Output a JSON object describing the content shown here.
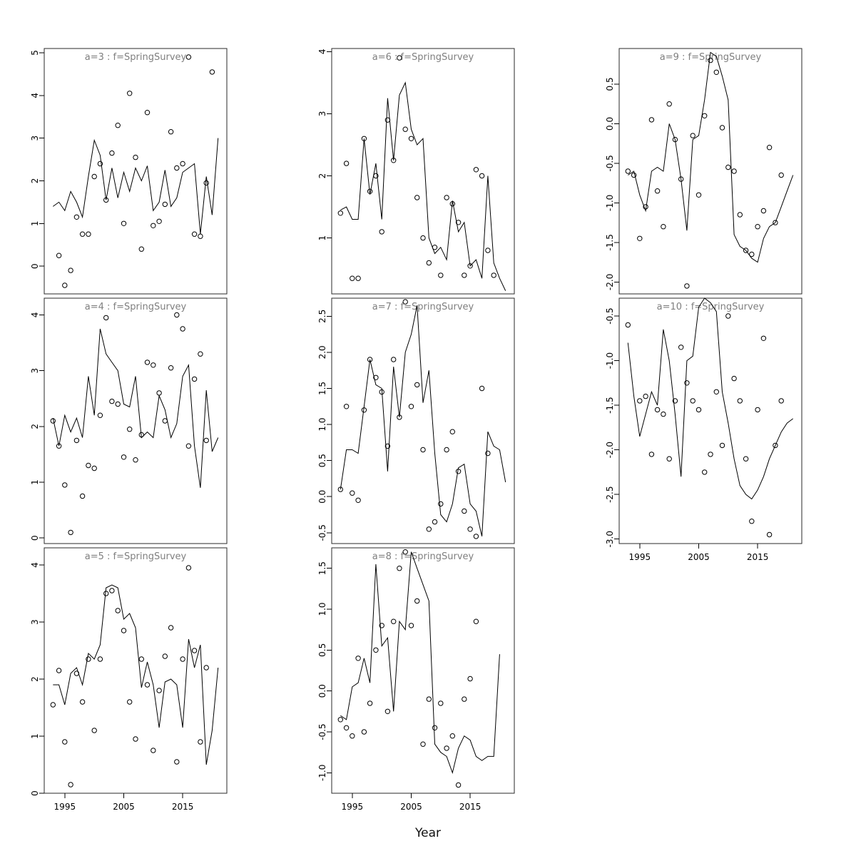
{
  "figure": {
    "xlabel": "Year",
    "title_color": "#7f7f7f",
    "line_color": "#000000",
    "point_color": "#000000"
  },
  "chart_data": {
    "type": "line",
    "title": "",
    "xlabel": "Year",
    "legend": "none",
    "grid": false,
    "x": [
      1993,
      1994,
      1995,
      1996,
      1997,
      1998,
      1999,
      2000,
      2001,
      2002,
      2003,
      2004,
      2005,
      2006,
      2007,
      2008,
      2009,
      2010,
      2011,
      2012,
      2013,
      2014,
      2015,
      2016,
      2017,
      2018,
      2019,
      2020,
      2021
    ],
    "x_range": [
      1992.6,
      2021.4
    ],
    "x_ticks": [
      1995,
      2005,
      2015
    ],
    "x_tick_labels": [
      "1995",
      "2005",
      "2015"
    ],
    "panels": [
      {
        "id": "a3",
        "title": "a=3  :  f=SpringSurvey",
        "row": 0,
        "col": 0,
        "y_range": [
          -0.65,
          5.1
        ],
        "y_ticks": [
          0,
          1,
          2,
          3,
          4,
          5
        ],
        "y_tick_labels": [
          "0",
          "1",
          "2",
          "3",
          "4",
          "5"
        ],
        "show_x_axis": false,
        "series": [
          {
            "name": "fit",
            "type": "line",
            "values": [
              1.4,
              1.5,
              1.3,
              1.75,
              1.5,
              1.15,
              2.1,
              2.95,
              2.6,
              1.55,
              2.3,
              1.6,
              2.2,
              1.75,
              2.3,
              2.0,
              2.35,
              1.3,
              1.5,
              2.25,
              1.4,
              1.6,
              2.2,
              2.3,
              2.4,
              0.75,
              2.1,
              1.2,
              3.0
            ]
          },
          {
            "name": "obs",
            "type": "scatter",
            "values": [
              null,
              0.25,
              -0.45,
              -0.1,
              1.15,
              0.75,
              0.75,
              2.1,
              2.4,
              1.55,
              2.65,
              3.3,
              1.0,
              4.05,
              2.55,
              0.4,
              3.6,
              0.95,
              1.05,
              1.45,
              3.15,
              2.3,
              2.4,
              4.9,
              0.75,
              0.7,
              1.95,
              4.55,
              null
            ]
          }
        ]
      },
      {
        "id": "a6",
        "title": "a=6  :  f=SpringSurvey",
        "row": 0,
        "col": 1,
        "y_range": [
          0.1,
          4.05
        ],
        "y_ticks": [
          1,
          2,
          3,
          4
        ],
        "y_tick_labels": [
          "1",
          "2",
          "3",
          "4"
        ],
        "show_x_axis": false,
        "series": [
          {
            "name": "fit",
            "type": "line",
            "values": [
              1.45,
              1.5,
              1.3,
              1.3,
              2.6,
              1.7,
              2.2,
              1.3,
              3.25,
              2.25,
              3.3,
              3.5,
              2.75,
              2.5,
              2.6,
              1.0,
              0.75,
              0.85,
              0.65,
              1.6,
              1.1,
              1.25,
              0.55,
              0.65,
              0.35,
              2.0,
              0.6,
              0.35,
              0.15
            ]
          },
          {
            "name": "obs",
            "type": "scatter",
            "values": [
              1.4,
              2.2,
              0.35,
              0.35,
              2.6,
              1.75,
              2.0,
              1.1,
              2.9,
              2.25,
              3.9,
              2.75,
              2.6,
              1.65,
              1.0,
              0.6,
              0.85,
              0.4,
              1.65,
              1.55,
              1.25,
              0.4,
              0.55,
              2.1,
              2.0,
              0.8,
              0.4,
              null,
              null
            ]
          }
        ]
      },
      {
        "id": "a9",
        "title": "a=9  :  f=SpringSurvey",
        "row": 0,
        "col": 2,
        "y_range": [
          -2.15,
          0.95
        ],
        "y_ticks": [
          -2.0,
          -1.5,
          -1.0,
          -0.5,
          0.0,
          0.5
        ],
        "y_tick_labels": [
          "-2.0",
          "-1.5",
          "-1.0",
          "-0.5",
          "0.0",
          "0.5"
        ],
        "show_x_axis": false,
        "series": [
          {
            "name": "fit",
            "type": "line",
            "values": [
              -0.65,
              -0.6,
              -0.9,
              -1.1,
              -0.6,
              -0.55,
              -0.6,
              0.0,
              -0.2,
              -0.7,
              -1.35,
              -0.2,
              -0.15,
              0.3,
              0.9,
              0.85,
              0.6,
              0.3,
              -1.4,
              -1.55,
              -1.6,
              -1.7,
              -1.75,
              -1.45,
              -1.3,
              -1.25,
              -1.05,
              -0.85,
              -0.65
            ]
          },
          {
            "name": "obs",
            "type": "scatter",
            "values": [
              -0.6,
              -0.65,
              -1.45,
              -1.05,
              0.05,
              -0.85,
              -1.3,
              0.25,
              -0.2,
              -0.7,
              -2.05,
              -0.15,
              -0.9,
              0.1,
              0.8,
              0.65,
              -0.05,
              -0.55,
              -0.6,
              -1.15,
              -1.6,
              -1.65,
              -1.3,
              -1.1,
              -0.3,
              -1.25,
              -0.65,
              null,
              null
            ]
          }
        ]
      },
      {
        "id": "a4",
        "title": "a=4  :  f=SpringSurvey",
        "row": 1,
        "col": 0,
        "y_range": [
          -0.1,
          4.3
        ],
        "y_ticks": [
          0,
          1,
          2,
          3,
          4
        ],
        "y_tick_labels": [
          "0",
          "1",
          "2",
          "3",
          "4"
        ],
        "show_x_axis": false,
        "series": [
          {
            "name": "fit",
            "type": "line",
            "values": [
              2.15,
              1.65,
              2.2,
              1.9,
              2.15,
              1.8,
              2.9,
              2.2,
              3.75,
              3.3,
              3.15,
              3.0,
              2.4,
              2.35,
              2.9,
              1.8,
              1.9,
              1.8,
              2.55,
              2.3,
              1.8,
              2.05,
              2.9,
              3.1,
              1.65,
              0.9,
              2.65,
              1.55,
              1.8
            ]
          },
          {
            "name": "obs",
            "type": "scatter",
            "values": [
              2.1,
              1.65,
              0.95,
              0.1,
              1.75,
              0.75,
              1.3,
              1.25,
              2.2,
              3.95,
              2.45,
              2.4,
              1.45,
              1.95,
              1.4,
              1.85,
              3.15,
              3.1,
              2.6,
              2.1,
              3.05,
              4.0,
              3.75,
              1.65,
              2.85,
              3.3,
              1.75,
              null,
              null
            ]
          }
        ]
      },
      {
        "id": "a7",
        "title": "a=7  :  f=SpringSurvey",
        "row": 1,
        "col": 1,
        "y_range": [
          -0.65,
          2.75
        ],
        "y_ticks": [
          -0.5,
          0.0,
          0.5,
          1.0,
          1.5,
          2.0,
          2.5
        ],
        "y_tick_labels": [
          "-0.5",
          "0.0",
          "0.5",
          "1.0",
          "1.5",
          "2.0",
          "2.5"
        ],
        "show_x_axis": false,
        "series": [
          {
            "name": "fit",
            "type": "line",
            "values": [
              0.1,
              0.65,
              0.65,
              0.6,
              1.25,
              1.9,
              1.55,
              1.5,
              0.35,
              1.8,
              1.1,
              2.0,
              2.25,
              2.65,
              1.3,
              1.75,
              0.6,
              -0.25,
              -0.35,
              -0.1,
              0.4,
              0.45,
              -0.1,
              -0.2,
              -0.55,
              0.9,
              0.7,
              0.65,
              0.2
            ]
          },
          {
            "name": "obs",
            "type": "scatter",
            "values": [
              0.1,
              1.25,
              0.05,
              -0.05,
              1.2,
              1.9,
              1.65,
              1.45,
              0.7,
              1.9,
              1.1,
              2.7,
              1.25,
              1.55,
              0.65,
              -0.45,
              -0.35,
              -0.1,
              0.65,
              0.9,
              0.35,
              -0.2,
              -0.45,
              -0.55,
              1.5,
              0.6,
              null,
              null,
              null
            ]
          }
        ]
      },
      {
        "id": "a10",
        "title": "a=10  :  f=SpringSurvey",
        "row": 1,
        "col": 2,
        "y_range": [
          -3.05,
          -0.3
        ],
        "y_ticks": [
          -3.0,
          -2.5,
          -2.0,
          -1.5,
          -1.0,
          -0.5
        ],
        "y_tick_labels": [
          "-3.0",
          "-2.5",
          "-2.0",
          "-1.5",
          "-1.0",
          "-0.5"
        ],
        "show_x_axis": true,
        "series": [
          {
            "name": "fit",
            "type": "line",
            "values": [
              -0.8,
              -1.4,
              -1.85,
              -1.6,
              -1.35,
              -1.5,
              -0.65,
              -1.0,
              -1.6,
              -2.3,
              -1.0,
              -0.95,
              -0.4,
              -0.3,
              -0.35,
              -0.45,
              -1.35,
              -1.7,
              -2.1,
              -2.4,
              -2.5,
              -2.55,
              -2.45,
              -2.3,
              -2.1,
              -1.95,
              -1.8,
              -1.7,
              -1.65
            ]
          },
          {
            "name": "obs",
            "type": "scatter",
            "values": [
              -0.6,
              null,
              -1.45,
              -1.4,
              -2.05,
              -1.55,
              -1.6,
              -2.1,
              -1.45,
              -0.85,
              -1.25,
              -1.45,
              -1.55,
              -2.25,
              -2.05,
              -1.35,
              -1.95,
              -0.5,
              -1.2,
              -1.45,
              -2.1,
              -2.8,
              -1.55,
              -0.75,
              -2.95,
              -1.95,
              -1.45,
              null,
              null
            ]
          }
        ]
      },
      {
        "id": "a5",
        "title": "a=5  :  f=SpringSurvey",
        "row": 2,
        "col": 0,
        "y_range": [
          0.0,
          4.3
        ],
        "y_ticks": [
          0,
          1,
          2,
          3,
          4
        ],
        "y_tick_labels": [
          "0",
          "1",
          "2",
          "3",
          "4"
        ],
        "show_x_axis": true,
        "series": [
          {
            "name": "fit",
            "type": "line",
            "values": [
              1.9,
              1.9,
              1.55,
              2.1,
              2.2,
              1.9,
              2.45,
              2.35,
              2.6,
              3.6,
              3.65,
              3.6,
              3.05,
              3.15,
              2.9,
              1.85,
              2.3,
              1.9,
              1.15,
              1.95,
              2.0,
              1.9,
              1.15,
              2.7,
              2.2,
              2.6,
              0.5,
              1.1,
              2.2
            ]
          },
          {
            "name": "obs",
            "type": "scatter",
            "values": [
              1.55,
              2.15,
              0.9,
              0.15,
              2.1,
              1.6,
              2.35,
              1.1,
              2.35,
              3.5,
              3.55,
              3.2,
              2.85,
              1.6,
              0.95,
              2.35,
              1.9,
              0.75,
              1.8,
              2.4,
              2.9,
              0.55,
              2.35,
              3.95,
              2.5,
              0.9,
              2.2,
              null,
              null
            ]
          }
        ]
      },
      {
        "id": "a8",
        "title": "a=8  :  f=SpringSurvey",
        "row": 2,
        "col": 1,
        "y_range": [
          -1.25,
          1.75
        ],
        "y_ticks": [
          -1.0,
          -0.5,
          0.0,
          0.5,
          1.0,
          1.5
        ],
        "y_tick_labels": [
          "-1.0",
          "-0.5",
          "0.0",
          "0.5",
          "1.0",
          "1.5"
        ],
        "show_x_axis": true,
        "series": [
          {
            "name": "fit",
            "type": "line",
            "values": [
              -0.3,
              -0.35,
              0.05,
              0.1,
              0.4,
              0.1,
              1.55,
              0.55,
              0.65,
              -0.25,
              0.85,
              0.75,
              1.7,
              1.5,
              1.3,
              1.1,
              -0.65,
              -0.75,
              -0.8,
              -1.0,
              -0.7,
              -0.55,
              -0.6,
              -0.8,
              -0.85,
              -0.8,
              -0.8,
              0.45,
              null
            ]
          },
          {
            "name": "obs",
            "type": "scatter",
            "values": [
              -0.35,
              -0.45,
              -0.55,
              0.4,
              -0.5,
              -0.15,
              0.5,
              0.8,
              -0.25,
              0.85,
              1.5,
              1.7,
              0.8,
              1.1,
              -0.65,
              -0.1,
              -0.45,
              -0.15,
              -0.7,
              -0.55,
              -1.15,
              -0.1,
              0.15,
              0.85,
              null,
              null,
              null,
              null,
              null
            ]
          }
        ]
      }
    ]
  }
}
